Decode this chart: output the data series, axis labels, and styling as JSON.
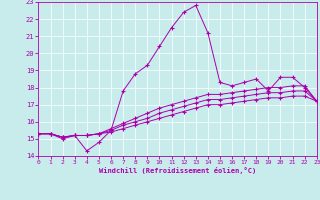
{
  "xlabel": "Windchill (Refroidissement éolien,°C)",
  "xlim": [
    0,
    23
  ],
  "ylim": [
    14,
    23
  ],
  "yticks": [
    14,
    15,
    16,
    17,
    18,
    19,
    20,
    21,
    22,
    23
  ],
  "xticks": [
    0,
    1,
    2,
    3,
    4,
    5,
    6,
    7,
    8,
    9,
    10,
    11,
    12,
    13,
    14,
    15,
    16,
    17,
    18,
    19,
    20,
    21,
    22,
    23
  ],
  "bg_color": "#c8ecec",
  "grid_color": "#b0d8d8",
  "line_color": "#aa00aa",
  "line1": [
    15.3,
    15.3,
    15.0,
    15.2,
    14.3,
    14.8,
    15.5,
    17.8,
    18.8,
    19.3,
    20.4,
    21.5,
    22.4,
    22.8,
    21.2,
    18.3,
    18.1,
    18.3,
    18.5,
    17.8,
    18.6,
    18.6,
    18.0,
    17.2
  ],
  "line2": [
    15.3,
    15.3,
    15.1,
    15.2,
    15.2,
    15.3,
    15.6,
    15.9,
    16.2,
    16.5,
    16.8,
    17.0,
    17.2,
    17.4,
    17.6,
    17.6,
    17.7,
    17.8,
    17.9,
    18.0,
    18.0,
    18.1,
    18.1,
    17.2
  ],
  "line3": [
    15.3,
    15.3,
    15.1,
    15.2,
    15.2,
    15.3,
    15.5,
    15.8,
    16.0,
    16.2,
    16.5,
    16.7,
    16.9,
    17.1,
    17.3,
    17.3,
    17.4,
    17.5,
    17.6,
    17.7,
    17.7,
    17.8,
    17.8,
    17.2
  ],
  "line4": [
    15.3,
    15.3,
    15.1,
    15.2,
    15.2,
    15.3,
    15.4,
    15.6,
    15.8,
    16.0,
    16.2,
    16.4,
    16.6,
    16.8,
    17.0,
    17.0,
    17.1,
    17.2,
    17.3,
    17.4,
    17.4,
    17.5,
    17.5,
    17.2
  ]
}
